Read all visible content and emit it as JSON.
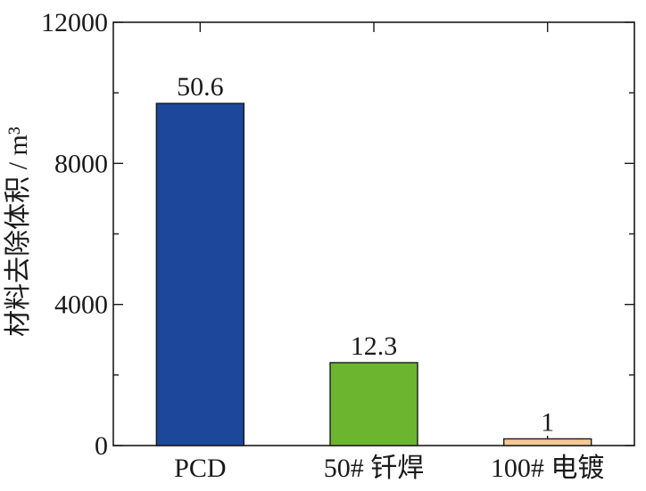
{
  "chart_data": {
    "type": "bar",
    "categories": [
      "PCD",
      "50# 钎焊",
      "100# 电镀"
    ],
    "values": [
      9700,
      2350,
      190
    ],
    "data_labels": [
      "50.6",
      "12.3",
      "1"
    ],
    "ylabel": "材料去除体积 / m³",
    "xlabel": "",
    "ylim": [
      0,
      12000
    ],
    "yticks": [
      0,
      4000,
      8000,
      12000
    ],
    "ytick_labels": [
      "0",
      "4000",
      "8000",
      "12000"
    ],
    "bar_colors": [
      "#1c479a",
      "#6cb52f",
      "#f6c896"
    ],
    "grid": false,
    "legend": "none"
  }
}
